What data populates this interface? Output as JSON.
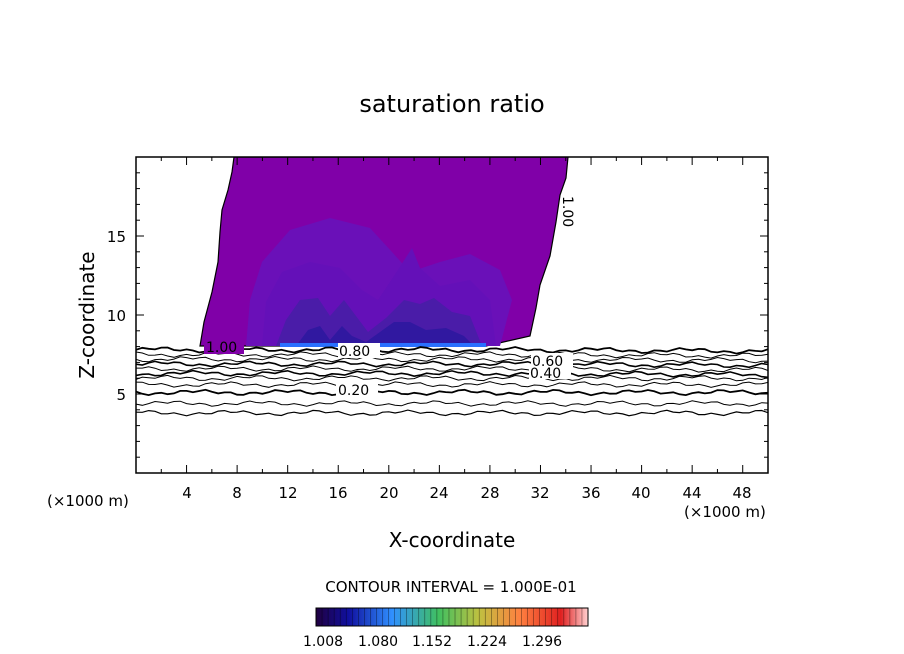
{
  "chart_data": {
    "type": "contour",
    "title": "saturation ratio",
    "xlabel": "X-coordinate",
    "ylabel": "Z-coordinate",
    "xunit_left": "(×1000 m)",
    "xunit_right": "(×1000 m)",
    "xlim": [
      0,
      50
    ],
    "ylim": [
      0,
      20
    ],
    "xticks": [
      "4",
      "8",
      "12",
      "16",
      "20",
      "24",
      "28",
      "32",
      "36",
      "40",
      "44",
      "48"
    ],
    "yticks": [
      "5",
      "10",
      "15"
    ],
    "contour_labels": [
      "1.00",
      "0.80",
      "0.60",
      "0.40",
      "0.20",
      "1.00"
    ],
    "contour_interval_text": "CONTOUR INTERVAL = 1.000E-01",
    "colorbar": {
      "ticks": [
        "1.008",
        "1.080",
        "1.152",
        "1.224",
        "1.296"
      ],
      "range": [
        1.008,
        1.32
      ]
    },
    "colors": {
      "base": "#8000a8",
      "mid": "#6a10b8",
      "deep": "#4a1ca8",
      "deeper": "#3018a0",
      "bright": "#2060ff"
    }
  }
}
